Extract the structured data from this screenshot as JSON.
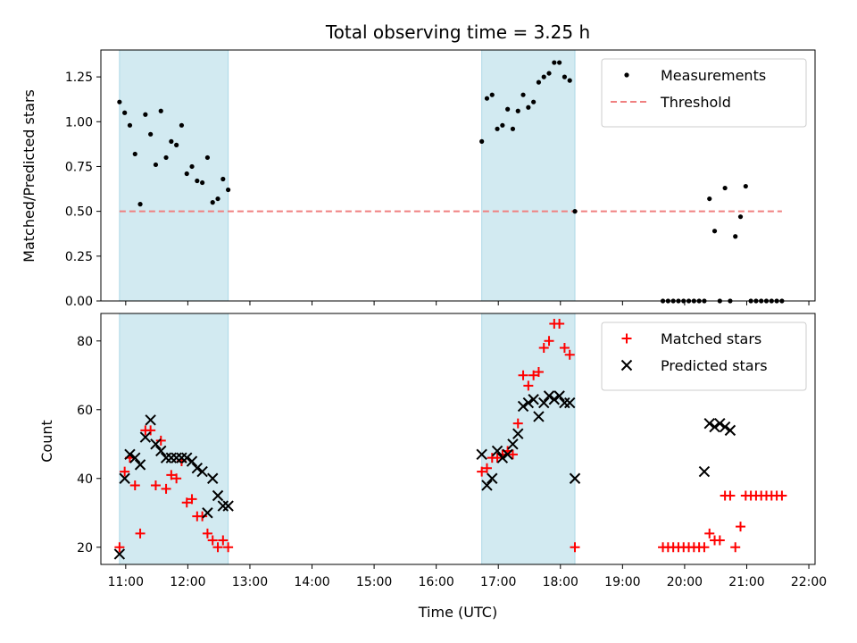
{
  "chart_data": {
    "title": "Total observing time = 3.25 h",
    "xlabel": "Time (UTC)",
    "xlim": [
      "10:36",
      "22:06"
    ],
    "xticks": [
      "11:00",
      "12:00",
      "13:00",
      "14:00",
      "15:00",
      "16:00",
      "17:00",
      "18:00",
      "19:00",
      "20:00",
      "21:00",
      "22:00"
    ],
    "shaded_intervals": [
      [
        "10:54",
        "12:39"
      ],
      [
        "16:44",
        "18:14"
      ]
    ],
    "shade_color": "#add8e6",
    "panels": [
      {
        "type": "scatter",
        "ylabel": "Matched/Predicted stars",
        "ylim": [
          0,
          1.4
        ],
        "yticks": [
          "0.00",
          "0.25",
          "0.50",
          "0.75",
          "1.00",
          "1.25"
        ],
        "legend_position": "top-right",
        "threshold": {
          "name": "Threshold",
          "y": 0.5,
          "x_range": [
            "10:54",
            "21:34"
          ],
          "color": "#f08080"
        },
        "series": [
          {
            "name": "Measurements",
            "marker": "dot",
            "color": "#000000",
            "points": [
              [
                "10:54",
                1.11
              ],
              [
                "10:59",
                1.05
              ],
              [
                "11:04",
                0.98
              ],
              [
                "11:09",
                0.82
              ],
              [
                "11:14",
                0.54
              ],
              [
                "11:19",
                1.04
              ],
              [
                "11:24",
                0.93
              ],
              [
                "11:29",
                0.76
              ],
              [
                "11:34",
                1.06
              ],
              [
                "11:39",
                0.8
              ],
              [
                "11:44",
                0.89
              ],
              [
                "11:49",
                0.87
              ],
              [
                "11:54",
                0.98
              ],
              [
                "11:59",
                0.71
              ],
              [
                "12:04",
                0.75
              ],
              [
                "12:09",
                0.67
              ],
              [
                "12:14",
                0.66
              ],
              [
                "12:19",
                0.8
              ],
              [
                "12:24",
                0.55
              ],
              [
                "12:29",
                0.57
              ],
              [
                "12:34",
                0.68
              ],
              [
                "12:39",
                0.62
              ],
              [
                "16:44",
                0.89
              ],
              [
                "16:49",
                1.13
              ],
              [
                "16:54",
                1.15
              ],
              [
                "16:59",
                0.96
              ],
              [
                "17:04",
                0.98
              ],
              [
                "17:09",
                1.07
              ],
              [
                "17:14",
                0.96
              ],
              [
                "17:19",
                1.06
              ],
              [
                "17:24",
                1.15
              ],
              [
                "17:29",
                1.08
              ],
              [
                "17:34",
                1.11
              ],
              [
                "17:39",
                1.22
              ],
              [
                "17:44",
                1.25
              ],
              [
                "17:49",
                1.27
              ],
              [
                "17:54",
                1.33
              ],
              [
                "17:59",
                1.33
              ],
              [
                "18:04",
                1.25
              ],
              [
                "18:09",
                1.23
              ],
              [
                "18:14",
                0.5
              ],
              [
                "19:39",
                0
              ],
              [
                "19:44",
                0
              ],
              [
                "19:49",
                0
              ],
              [
                "19:54",
                0
              ],
              [
                "19:59",
                0
              ],
              [
                "20:04",
                0
              ],
              [
                "20:09",
                0
              ],
              [
                "20:14",
                0
              ],
              [
                "20:19",
                0
              ],
              [
                "20:24",
                0.57
              ],
              [
                "20:29",
                0.39
              ],
              [
                "20:34",
                0
              ],
              [
                "20:39",
                0.63
              ],
              [
                "20:44",
                0
              ],
              [
                "20:49",
                0.36
              ],
              [
                "20:54",
                0.47
              ],
              [
                "20:59",
                0.64
              ],
              [
                "21:04",
                0
              ],
              [
                "21:09",
                0
              ],
              [
                "21:14",
                0
              ],
              [
                "21:19",
                0
              ],
              [
                "21:24",
                0
              ],
              [
                "21:29",
                0
              ],
              [
                "21:34",
                0
              ]
            ]
          }
        ]
      },
      {
        "type": "scatter",
        "ylabel": "Count",
        "ylim": [
          15,
          88
        ],
        "yticks": [
          "20",
          "40",
          "60",
          "80"
        ],
        "legend_position": "top-right",
        "series": [
          {
            "name": "Matched stars",
            "marker": "plus",
            "color": "#ff0000",
            "points": [
              [
                "10:54",
                20
              ],
              [
                "10:59",
                42
              ],
              [
                "11:04",
                46
              ],
              [
                "11:09",
                38
              ],
              [
                "11:14",
                24
              ],
              [
                "11:19",
                54
              ],
              [
                "11:24",
                54
              ],
              [
                "11:29",
                38
              ],
              [
                "11:34",
                51
              ],
              [
                "11:39",
                37
              ],
              [
                "11:44",
                41
              ],
              [
                "11:49",
                40
              ],
              [
                "11:54",
                45
              ],
              [
                "11:59",
                33
              ],
              [
                "12:04",
                34
              ],
              [
                "12:09",
                29
              ],
              [
                "12:14",
                29
              ],
              [
                "12:19",
                24
              ],
              [
                "12:24",
                22
              ],
              [
                "12:29",
                20
              ],
              [
                "12:34",
                22
              ],
              [
                "12:39",
                20
              ],
              [
                "16:44",
                42
              ],
              [
                "16:49",
                43
              ],
              [
                "16:54",
                46
              ],
              [
                "16:59",
                46
              ],
              [
                "17:04",
                47
              ],
              [
                "17:09",
                48
              ],
              [
                "17:14",
                47
              ],
              [
                "17:19",
                56
              ],
              [
                "17:24",
                70
              ],
              [
                "17:29",
                67
              ],
              [
                "17:34",
                70
              ],
              [
                "17:39",
                71
              ],
              [
                "17:44",
                78
              ],
              [
                "17:49",
                80
              ],
              [
                "17:54",
                85
              ],
              [
                "17:59",
                85
              ],
              [
                "18:04",
                78
              ],
              [
                "18:09",
                76
              ],
              [
                "18:14",
                20
              ],
              [
                "19:39",
                20
              ],
              [
                "19:44",
                20
              ],
              [
                "19:49",
                20
              ],
              [
                "19:54",
                20
              ],
              [
                "19:59",
                20
              ],
              [
                "20:04",
                20
              ],
              [
                "20:09",
                20
              ],
              [
                "20:14",
                20
              ],
              [
                "20:19",
                20
              ],
              [
                "20:24",
                24
              ],
              [
                "20:29",
                22
              ],
              [
                "20:34",
                22
              ],
              [
                "20:39",
                35
              ],
              [
                "20:44",
                35
              ],
              [
                "20:49",
                20
              ],
              [
                "20:54",
                26
              ],
              [
                "20:59",
                35
              ],
              [
                "21:04",
                35
              ],
              [
                "21:09",
                35
              ],
              [
                "21:14",
                35
              ],
              [
                "21:19",
                35
              ],
              [
                "21:24",
                35
              ],
              [
                "21:29",
                35
              ],
              [
                "21:34",
                35
              ]
            ]
          },
          {
            "name": "Predicted stars",
            "marker": "x",
            "color": "#000000",
            "points": [
              [
                "10:54",
                18
              ],
              [
                "10:59",
                40
              ],
              [
                "11:04",
                47
              ],
              [
                "11:09",
                46
              ],
              [
                "11:14",
                44
              ],
              [
                "11:19",
                52
              ],
              [
                "11:24",
                57
              ],
              [
                "11:29",
                50
              ],
              [
                "11:34",
                48
              ],
              [
                "11:39",
                46
              ],
              [
                "11:44",
                46
              ],
              [
                "11:49",
                46
              ],
              [
                "11:54",
                46
              ],
              [
                "11:59",
                46
              ],
              [
                "12:04",
                45
              ],
              [
                "12:09",
                43
              ],
              [
                "12:14",
                42
              ],
              [
                "12:19",
                30
              ],
              [
                "12:24",
                40
              ],
              [
                "12:29",
                35
              ],
              [
                "12:34",
                32
              ],
              [
                "12:39",
                32
              ],
              [
                "16:44",
                47
              ],
              [
                "16:49",
                38
              ],
              [
                "16:54",
                40
              ],
              [
                "16:59",
                48
              ],
              [
                "17:04",
                46
              ],
              [
                "17:09",
                47
              ],
              [
                "17:14",
                50
              ],
              [
                "17:19",
                53
              ],
              [
                "17:24",
                61
              ],
              [
                "17:29",
                62
              ],
              [
                "17:34",
                63
              ],
              [
                "17:39",
                58
              ],
              [
                "17:44",
                62
              ],
              [
                "17:49",
                64
              ],
              [
                "17:54",
                63
              ],
              [
                "17:59",
                64
              ],
              [
                "18:04",
                62
              ],
              [
                "18:09",
                62
              ],
              [
                "18:14",
                40
              ],
              [
                "20:19",
                42
              ],
              [
                "20:24",
                56
              ],
              [
                "20:29",
                55
              ],
              [
                "20:34",
                56
              ],
              [
                "20:39",
                55
              ],
              [
                "20:44",
                54
              ]
            ]
          }
        ]
      }
    ]
  }
}
